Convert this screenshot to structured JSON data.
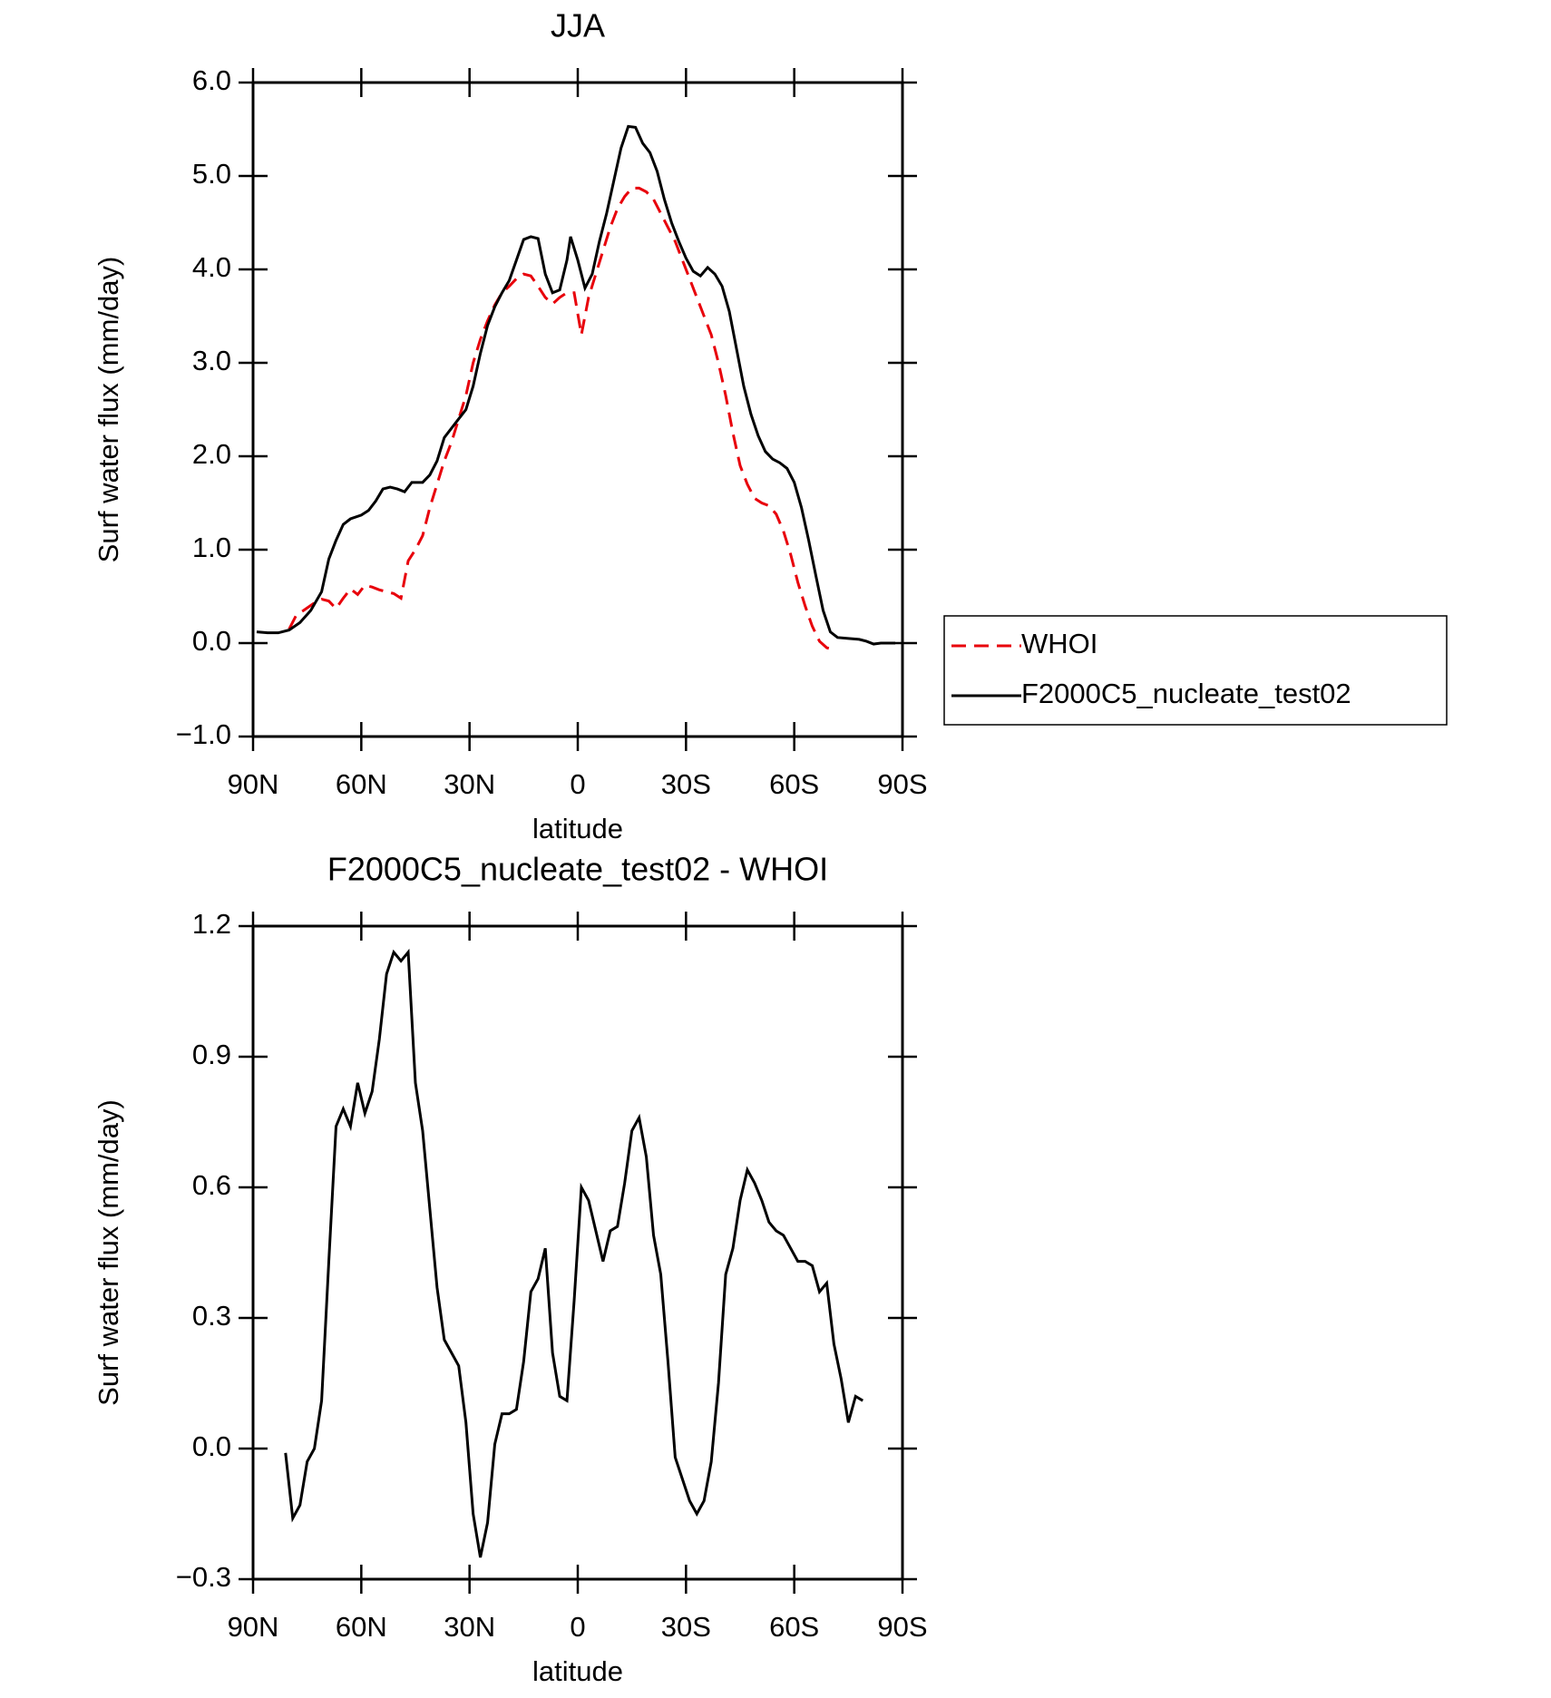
{
  "chart_data": [
    {
      "type": "line",
      "title": "JJA",
      "x_label": "latitude",
      "y_label": "Surf water flux (mm/day)",
      "xlim": [
        90,
        -90
      ],
      "xticks": [
        {
          "value": 90,
          "label": "90N"
        },
        {
          "value": 60,
          "label": "60N"
        },
        {
          "value": 30,
          "label": "30N"
        },
        0,
        {
          "value": -30,
          "label": "30S"
        },
        {
          "value": -60,
          "label": "60S"
        },
        {
          "value": -90,
          "label": "90S"
        }
      ],
      "ylim": [
        -1,
        6
      ],
      "yticks": [
        {
          "value": -1,
          "label": "−1.0"
        },
        {
          "value": 0,
          "label": "0.0"
        },
        {
          "value": 1,
          "label": "1.0"
        },
        {
          "value": 2,
          "label": "2.0"
        },
        {
          "value": 3,
          "label": "3.0"
        },
        {
          "value": 4,
          "label": "4.0"
        },
        {
          "value": 5,
          "label": "5.0"
        },
        {
          "value": 6,
          "label": "6.0"
        }
      ],
      "legend": "right",
      "series": [
        {
          "name": "WHOI",
          "color": "#e8000b",
          "dashed": true,
          "x": [
            80,
            78,
            76,
            73,
            71,
            69,
            67,
            65,
            63,
            61,
            59,
            57,
            55,
            53,
            51,
            49,
            47,
            45,
            43,
            41,
            39,
            37,
            35,
            33,
            31,
            29,
            27,
            25,
            23,
            21,
            19,
            17,
            15,
            13,
            11,
            9,
            7,
            5,
            3,
            1,
            -1,
            -3,
            -5,
            -7,
            -9,
            -11,
            -13,
            -15,
            -17,
            -19,
            -21,
            -23,
            -25,
            -27,
            -29,
            -31,
            -33,
            -35,
            -37,
            -39,
            -41,
            -43,
            -45,
            -47,
            -49,
            -51,
            -53,
            -55,
            -57,
            -59,
            -61,
            -63,
            -65,
            -67,
            -69,
            -70
          ],
          "values": [
            0.15,
            0.3,
            0.35,
            0.43,
            0.47,
            0.45,
            0.37,
            0.48,
            0.58,
            0.52,
            0.62,
            0.6,
            0.57,
            0.55,
            0.53,
            0.48,
            0.88,
            1.0,
            1.15,
            1.45,
            1.7,
            1.95,
            2.15,
            2.4,
            2.65,
            3.0,
            3.25,
            3.45,
            3.62,
            3.75,
            3.82,
            3.9,
            3.95,
            3.93,
            3.82,
            3.7,
            3.63,
            3.7,
            3.75,
            3.75,
            3.3,
            3.7,
            3.95,
            4.2,
            4.45,
            4.65,
            4.78,
            4.87,
            4.87,
            4.83,
            4.75,
            4.6,
            4.45,
            4.3,
            4.1,
            3.9,
            3.7,
            3.5,
            3.3,
            3.0,
            2.65,
            2.25,
            1.9,
            1.7,
            1.55,
            1.5,
            1.47,
            1.38,
            1.2,
            0.95,
            0.65,
            0.4,
            0.18,
            0.02,
            -0.05,
            -0.06
          ]
        },
        {
          "name": "F2000C5_nucleate_test02",
          "color": "#000000",
          "dashed": false,
          "x": [
            89,
            86,
            83,
            80,
            77,
            74,
            71,
            69,
            67,
            65,
            63,
            60,
            58,
            56,
            54,
            52,
            50,
            48,
            46,
            43,
            41,
            39,
            37,
            34,
            31,
            29,
            27,
            25,
            23,
            21,
            19,
            17,
            15,
            13,
            11,
            9,
            7,
            5,
            3,
            2,
            0,
            -2,
            -4,
            -6,
            -8,
            -10,
            -12,
            -14,
            -16,
            -18,
            -20,
            -22,
            -24,
            -26,
            -28,
            -30,
            -32,
            -34,
            -36,
            -38,
            -40,
            -42,
            -44,
            -46,
            -48,
            -50,
            -52,
            -54,
            -56,
            -58,
            -60,
            -62,
            -64,
            -66,
            -68,
            -70,
            -72,
            -75,
            -78,
            -80,
            -82,
            -84,
            -88
          ],
          "values": [
            0.12,
            0.11,
            0.11,
            0.14,
            0.22,
            0.35,
            0.55,
            0.9,
            1.1,
            1.27,
            1.33,
            1.37,
            1.42,
            1.52,
            1.65,
            1.67,
            1.65,
            1.62,
            1.72,
            1.72,
            1.8,
            1.95,
            2.2,
            2.35,
            2.5,
            2.75,
            3.1,
            3.4,
            3.6,
            3.75,
            3.88,
            4.1,
            4.32,
            4.35,
            4.33,
            3.95,
            3.75,
            3.78,
            4.1,
            4.35,
            4.1,
            3.8,
            3.95,
            4.3,
            4.6,
            4.95,
            5.3,
            5.53,
            5.52,
            5.35,
            5.25,
            5.05,
            4.75,
            4.5,
            4.3,
            4.12,
            3.98,
            3.93,
            4.02,
            3.95,
            3.82,
            3.55,
            3.15,
            2.75,
            2.45,
            2.22,
            2.05,
            1.97,
            1.93,
            1.87,
            1.72,
            1.45,
            1.1,
            0.72,
            0.35,
            0.12,
            0.06,
            0.05,
            0.04,
            0.02,
            -0.01,
            0.0,
            0.0
          ]
        }
      ]
    },
    {
      "type": "line",
      "title": "F2000C5_nucleate_test02 - WHOI",
      "x_label": "latitude",
      "y_label": "Surf water flux (mm/day)",
      "xlim": [
        90,
        -90
      ],
      "xticks": [
        {
          "value": 90,
          "label": "90N"
        },
        {
          "value": 60,
          "label": "60N"
        },
        {
          "value": 30,
          "label": "30N"
        },
        0,
        {
          "value": -30,
          "label": "30S"
        },
        {
          "value": -60,
          "label": "60S"
        },
        {
          "value": -90,
          "label": "90S"
        }
      ],
      "ylim": [
        -0.3,
        1.2
      ],
      "yticks": [
        {
          "value": -0.3,
          "label": "−0.3"
        },
        {
          "value": 0,
          "label": "0.0"
        },
        0.3,
        0.6,
        0.9,
        1.2
      ],
      "series": [
        {
          "color": "#000000",
          "dashed": false,
          "x": [
            81,
            79,
            77,
            75,
            73,
            71,
            69,
            67,
            65,
            63,
            61,
            59,
            57,
            55,
            53,
            51,
            49,
            47,
            45,
            43,
            41,
            39,
            37,
            35,
            33,
            31,
            29,
            27,
            25,
            23,
            21,
            19,
            17,
            15,
            13,
            11,
            9,
            7,
            5,
            3,
            1,
            -1,
            -3,
            -5,
            -7,
            -9,
            -11,
            -13,
            -15,
            -17,
            -19,
            -21,
            -23,
            -25,
            -27,
            -29,
            -31,
            -33,
            -35,
            -37,
            -39,
            -41,
            -43,
            -45,
            -47,
            -49,
            -51,
            -53,
            -55,
            -57,
            -59,
            -61,
            -63,
            -65,
            -67,
            -69,
            -71,
            -73,
            -75,
            -77,
            -79
          ],
          "values": [
            -0.01,
            -0.16,
            -0.13,
            -0.03,
            0.0,
            0.11,
            0.43,
            0.74,
            0.78,
            0.74,
            0.84,
            0.77,
            0.82,
            0.94,
            1.09,
            1.14,
            1.12,
            1.14,
            0.84,
            0.73,
            0.55,
            0.37,
            0.25,
            0.22,
            0.19,
            0.06,
            -0.15,
            -0.25,
            -0.17,
            0.01,
            0.08,
            0.08,
            0.09,
            0.2,
            0.36,
            0.39,
            0.46,
            0.22,
            0.12,
            0.11,
            0.34,
            0.6,
            0.57,
            0.5,
            0.43,
            0.5,
            0.51,
            0.61,
            0.73,
            0.76,
            0.67,
            0.49,
            0.4,
            0.2,
            -0.02,
            -0.07,
            -0.12,
            -0.15,
            -0.12,
            -0.03,
            0.15,
            0.4,
            0.46,
            0.57,
            0.64,
            0.61,
            0.57,
            0.52,
            0.5,
            0.49,
            0.46,
            0.43,
            0.43,
            0.42,
            0.36,
            0.38,
            0.24,
            0.16,
            0.06,
            0.12,
            0.11
          ]
        }
      ]
    }
  ]
}
